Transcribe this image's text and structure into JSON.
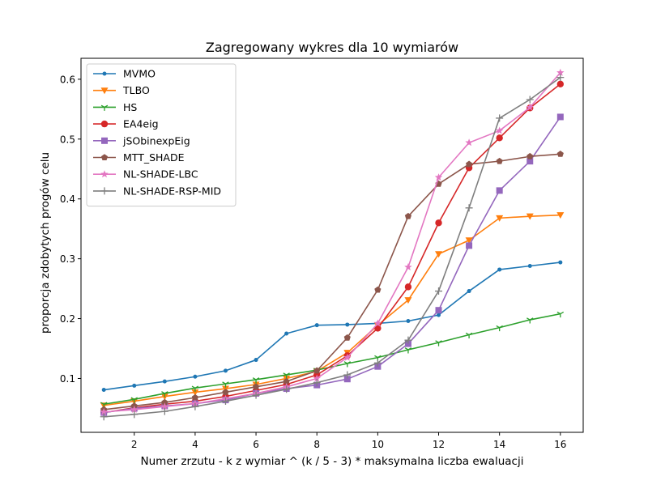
{
  "chart_data": {
    "type": "line",
    "title": "Zagregowany wykres dla 10 wymiarów",
    "xlabel": "Numer zrzutu - k z wymiar ^ (k / 5 - 3) * maksymalna liczba ewaluacji",
    "ylabel": "proporcja zdobytych progów celu",
    "x": [
      1,
      2,
      3,
      4,
      5,
      6,
      7,
      8,
      9,
      10,
      11,
      12,
      13,
      14,
      15,
      16
    ],
    "xlim": [
      0.25,
      16.75
    ],
    "ylim": [
      0.01,
      0.635
    ],
    "xticks": [
      2,
      4,
      6,
      8,
      10,
      12,
      14,
      16
    ],
    "yticks": [
      0.1,
      0.2,
      0.3,
      0.4,
      0.5,
      0.6
    ],
    "xtick_labels": [
      "2",
      "4",
      "6",
      "8",
      "10",
      "12",
      "14",
      "16"
    ],
    "ytick_labels": [
      "0.1",
      "0.2",
      "0.3",
      "0.4",
      "0.5",
      "0.6"
    ],
    "grid": false,
    "legend_position": "upper-left",
    "series": [
      {
        "name": "MVMO",
        "color": "#1f77b4",
        "marker": "point",
        "values": [
          0.081,
          0.088,
          0.095,
          0.103,
          0.113,
          0.131,
          0.175,
          0.189,
          0.19,
          0.192,
          0.196,
          0.206,
          0.246,
          0.282,
          0.288,
          0.294
        ]
      },
      {
        "name": "TLBO",
        "color": "#ff7f0e",
        "marker": "triangle-down",
        "values": [
          0.055,
          0.062,
          0.07,
          0.077,
          0.083,
          0.09,
          0.1,
          0.112,
          0.143,
          0.189,
          0.231,
          0.308,
          0.331,
          0.368,
          0.371,
          0.373
        ]
      },
      {
        "name": "HS",
        "color": "#2ca02c",
        "marker": "tri-down",
        "values": [
          0.057,
          0.065,
          0.075,
          0.084,
          0.091,
          0.098,
          0.106,
          0.114,
          0.125,
          0.135,
          0.148,
          0.16,
          0.173,
          0.185,
          0.198,
          0.208
        ]
      },
      {
        "name": "EA4eig",
        "color": "#d62728",
        "marker": "circle",
        "values": [
          0.043,
          0.051,
          0.057,
          0.062,
          0.07,
          0.08,
          0.09,
          0.106,
          0.138,
          0.184,
          0.253,
          0.36,
          0.452,
          0.502,
          0.552,
          0.592
        ]
      },
      {
        "name": "jSObinexpEig",
        "color": "#9467bd",
        "marker": "square",
        "values": [
          0.043,
          0.05,
          0.054,
          0.058,
          0.064,
          0.075,
          0.083,
          0.089,
          0.099,
          0.12,
          0.158,
          0.214,
          0.322,
          0.414,
          0.463,
          0.537
        ]
      },
      {
        "name": "MTT_SHADE",
        "color": "#8c564b",
        "marker": "pentagon",
        "values": [
          0.048,
          0.054,
          0.06,
          0.068,
          0.077,
          0.086,
          0.095,
          0.113,
          0.168,
          0.248,
          0.371,
          0.425,
          0.458,
          0.463,
          0.471,
          0.475
        ]
      },
      {
        "name": "NL-SHADE-LBC",
        "color": "#e377c2",
        "marker": "star",
        "values": [
          0.044,
          0.048,
          0.053,
          0.058,
          0.066,
          0.075,
          0.086,
          0.1,
          0.135,
          0.192,
          0.286,
          0.436,
          0.494,
          0.514,
          0.553,
          0.611
        ]
      },
      {
        "name": "NL-SHADE-RSP-MID",
        "color": "#7f7f7f",
        "marker": "plus",
        "values": [
          0.036,
          0.04,
          0.045,
          0.053,
          0.062,
          0.072,
          0.082,
          0.093,
          0.106,
          0.126,
          0.164,
          0.246,
          0.385,
          0.535,
          0.566,
          0.603
        ]
      }
    ]
  }
}
